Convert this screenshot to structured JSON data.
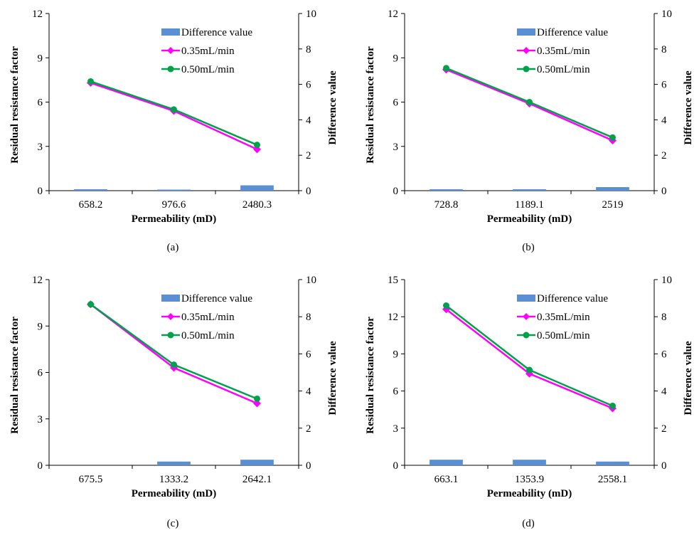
{
  "colors": {
    "bar": "#5B8FD4",
    "series_035": "#FF00FF",
    "series_050": "#00A14B",
    "axis": "#000000"
  },
  "chart_data": [
    {
      "type": "bar+line",
      "caption": "(a)",
      "categories": [
        "658.2",
        "976.6",
        "2480.3"
      ],
      "xlabel": "Permeability (mD)",
      "ylabel": "Residual resistance factor",
      "y2label": "Difference value",
      "ylim": [
        0,
        12
      ],
      "yticks": [
        "0",
        "3",
        "6",
        "9",
        "12"
      ],
      "y2lim": [
        0,
        10
      ],
      "y2ticks": [
        "0",
        "2",
        "4",
        "6",
        "8",
        "10"
      ],
      "legend_position": "top-right",
      "bars": {
        "name": "Difference value",
        "values": [
          0.08,
          0.06,
          0.3
        ],
        "axis": "right"
      },
      "series": [
        {
          "name": "0.35mL/min",
          "marker": "diamond",
          "values": [
            7.3,
            5.4,
            2.8
          ]
        },
        {
          "name": "0.50mL/min",
          "marker": "circle",
          "values": [
            7.4,
            5.5,
            3.1
          ]
        }
      ]
    },
    {
      "type": "bar+line",
      "caption": "(b)",
      "categories": [
        "728.8",
        "1189.1",
        "2519"
      ],
      "xlabel": "Permeability (mD)",
      "ylabel": "Residual resistance factor",
      "y2label": "Difference value",
      "ylim": [
        0,
        12
      ],
      "yticks": [
        "0",
        "3",
        "6",
        "9",
        "12"
      ],
      "y2lim": [
        0,
        10
      ],
      "y2ticks": [
        "0",
        "2",
        "4",
        "6",
        "8",
        "10"
      ],
      "legend_position": "top-right",
      "bars": {
        "name": "Difference value",
        "values": [
          0.08,
          0.08,
          0.2
        ],
        "axis": "right"
      },
      "series": [
        {
          "name": "0.35mL/min",
          "marker": "diamond",
          "values": [
            8.2,
            5.9,
            3.4
          ]
        },
        {
          "name": "0.50mL/min",
          "marker": "circle",
          "values": [
            8.3,
            6.0,
            3.6
          ]
        }
      ]
    },
    {
      "type": "bar+line",
      "caption": "(c)",
      "categories": [
        "675.5",
        "1333.2",
        "2642.1"
      ],
      "xlabel": "Permeability (mD)",
      "ylabel": "Residual resistance factor",
      "y2label": "Difference value",
      "ylim": [
        0,
        12
      ],
      "yticks": [
        "0",
        "3",
        "6",
        "9",
        "12"
      ],
      "y2lim": [
        0,
        10
      ],
      "y2ticks": [
        "0",
        "2",
        "4",
        "6",
        "8",
        "10"
      ],
      "legend_position": "top-right",
      "bars": {
        "name": "Difference value",
        "values": [
          0.0,
          0.2,
          0.3
        ],
        "axis": "right"
      },
      "series": [
        {
          "name": "0.35mL/min",
          "marker": "diamond",
          "values": [
            10.4,
            6.3,
            4.0
          ]
        },
        {
          "name": "0.50mL/min",
          "marker": "circle",
          "values": [
            10.4,
            6.5,
            4.3
          ]
        }
      ]
    },
    {
      "type": "bar+line",
      "caption": "(d)",
      "categories": [
        "663.1",
        "1353.9",
        "2558.1"
      ],
      "xlabel": "Permeability (mD)",
      "ylabel": "Residual resistance factor",
      "y2label": "Difference value",
      "ylim": [
        0,
        15
      ],
      "yticks": [
        "0",
        "3",
        "6",
        "9",
        "12",
        "15"
      ],
      "y2lim": [
        0,
        10
      ],
      "y2ticks": [
        "0",
        "2",
        "4",
        "6",
        "8",
        "10"
      ],
      "legend_position": "top-right",
      "bars": {
        "name": "Difference value",
        "values": [
          0.3,
          0.3,
          0.2
        ],
        "axis": "right"
      },
      "series": [
        {
          "name": "0.35mL/min",
          "marker": "diamond",
          "values": [
            12.6,
            7.4,
            4.6
          ]
        },
        {
          "name": "0.50mL/min",
          "marker": "circle",
          "values": [
            12.9,
            7.7,
            4.8
          ]
        }
      ]
    }
  ]
}
